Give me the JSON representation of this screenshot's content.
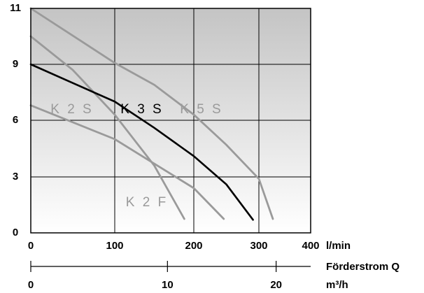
{
  "chart_data": {
    "type": "line",
    "xlabel": "l/min",
    "xlim": [
      0,
      400
    ],
    "xticks": [
      0,
      100,
      200,
      300,
      400
    ],
    "ylim": [
      0,
      11
    ],
    "yticks": [
      0,
      3,
      6,
      9,
      11
    ],
    "x2label": "Förderstrom Q",
    "x2unit": "m³/h",
    "x2lim": [
      0,
      24
    ],
    "x2ticks": [
      0,
      10,
      20
    ],
    "grid": true,
    "series": [
      {
        "name": "K 5 S",
        "color": "#9a9a9a",
        "x": [
          0,
          100,
          150,
          200,
          250,
          300,
          327
        ],
        "values": [
          11,
          9.05,
          7.9,
          6.3,
          4.7,
          2.9,
          0.75
        ]
      },
      {
        "name": "K 2 S",
        "color": "#9a9a9a",
        "x": [
          0,
          50,
          100,
          150,
          188
        ],
        "values": [
          10,
          8.7,
          6.3,
          3.6,
          0.75
        ]
      },
      {
        "name": "K 2 F",
        "color": "#9a9a9a",
        "x": [
          0,
          100,
          150,
          200,
          246
        ],
        "values": [
          6.8,
          5.0,
          3.7,
          2.4,
          0.75
        ]
      },
      {
        "name": "K 3 S",
        "color": "#000000",
        "x": [
          0,
          50,
          100,
          150,
          200,
          250,
          291
        ],
        "values": [
          9,
          8.0,
          7.0,
          5.6,
          4.1,
          2.6,
          0.7
        ]
      }
    ]
  }
}
